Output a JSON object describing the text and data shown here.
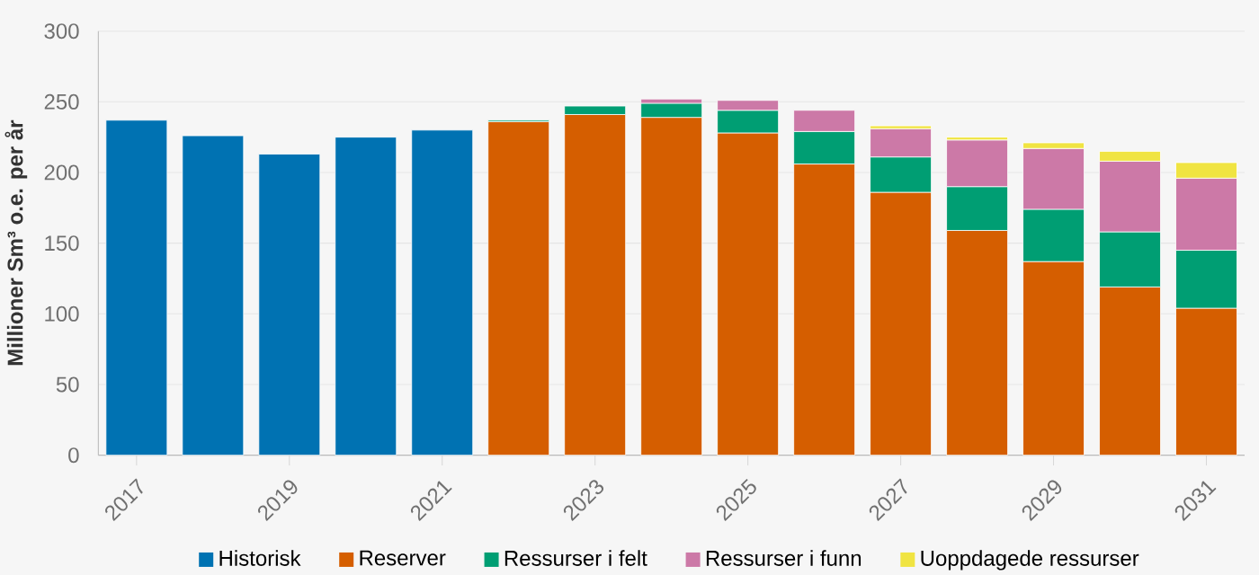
{
  "chart_data": {
    "type": "bar",
    "stacked": true,
    "ylabel": "Millioner Sm³ o.e. per år",
    "categories": [
      "2017",
      null,
      "2019",
      null,
      "2021",
      null,
      "2023",
      null,
      "2025",
      null,
      "2027",
      null,
      "2029",
      null,
      "2031"
    ],
    "series": [
      {
        "name": "Historisk",
        "color": "#0072b2",
        "values": [
          237,
          226,
          213,
          225,
          230,
          null,
          null,
          null,
          null,
          null,
          null,
          null,
          null,
          null,
          null
        ]
      },
      {
        "name": "Reserver",
        "color": "#d55e00",
        "values": [
          null,
          null,
          null,
          null,
          null,
          236,
          241,
          239,
          228,
          206,
          186,
          159,
          137,
          119,
          104
        ]
      },
      {
        "name": "Ressurser i felt",
        "color": "#009e73",
        "values": [
          null,
          null,
          null,
          null,
          null,
          1,
          6,
          10,
          16,
          23,
          25,
          31,
          37,
          39,
          41
        ]
      },
      {
        "name": "Ressurser i funn",
        "color": "#cc79a7",
        "values": [
          null,
          null,
          null,
          null,
          null,
          null,
          null,
          3,
          7,
          15,
          20,
          33,
          43,
          50,
          51
        ]
      },
      {
        "name": "Uoppdagede ressurser",
        "color": "#f0e442",
        "values": [
          null,
          null,
          null,
          null,
          null,
          null,
          null,
          null,
          null,
          null,
          2,
          2,
          4,
          7,
          11
        ]
      }
    ],
    "ylim": [
      0,
      300
    ],
    "yticks": [
      0,
      50,
      100,
      150,
      200,
      250,
      300
    ],
    "grid": "y",
    "legend": "bottom"
  }
}
